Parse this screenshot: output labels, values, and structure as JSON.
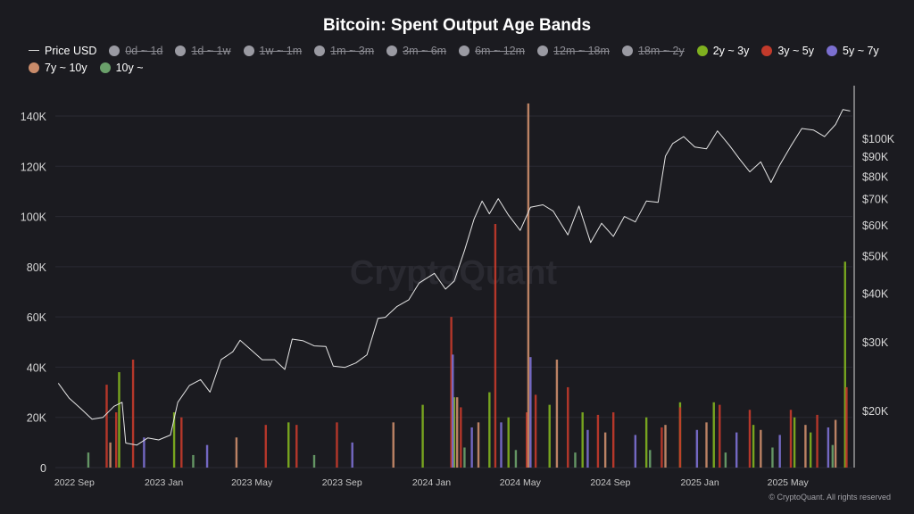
{
  "chart_data": {
    "type": "line",
    "title": "Bitcoin: Spent Output Age Bands",
    "watermark": "CryptoQuant",
    "copyright": "© CryptoQuant. All rights reserved",
    "legend": [
      {
        "name": "Price USD",
        "kind": "line",
        "color": "#d8d8d8",
        "enabled": true
      },
      {
        "name": "0d ~ 1d",
        "kind": "dot",
        "color": "#9a9aa2",
        "enabled": false
      },
      {
        "name": "1d ~ 1w",
        "kind": "dot",
        "color": "#9a9aa2",
        "enabled": false
      },
      {
        "name": "1w ~ 1m",
        "kind": "dot",
        "color": "#9a9aa2",
        "enabled": false
      },
      {
        "name": "1m ~ 3m",
        "kind": "dot",
        "color": "#9a9aa2",
        "enabled": false
      },
      {
        "name": "3m ~ 6m",
        "kind": "dot",
        "color": "#9a9aa2",
        "enabled": false
      },
      {
        "name": "6m ~ 12m",
        "kind": "dot",
        "color": "#9a9aa2",
        "enabled": false
      },
      {
        "name": "12m ~ 18m",
        "kind": "dot",
        "color": "#9a9aa2",
        "enabled": false
      },
      {
        "name": "18m ~ 2y",
        "kind": "dot",
        "color": "#9a9aa2",
        "enabled": false
      },
      {
        "name": "2y ~ 3y",
        "kind": "dot",
        "color": "#7fb01f",
        "enabled": true
      },
      {
        "name": "3y ~ 5y",
        "kind": "dot",
        "color": "#c23a2b",
        "enabled": true
      },
      {
        "name": "5y ~ 7y",
        "kind": "dot",
        "color": "#7b6fd0",
        "enabled": true
      },
      {
        "name": "7y ~ 10y",
        "kind": "dot",
        "color": "#c98b6a",
        "enabled": true
      },
      {
        "name": "10y ~",
        "kind": "dot",
        "color": "#6aa06a",
        "enabled": true
      }
    ],
    "x_ticks": [
      "2022 Sep",
      "2023 Jan",
      "2023 May",
      "2023 Sep",
      "2024 Jan",
      "2024 May",
      "2024 Sep",
      "2025 Jan",
      "2025 May"
    ],
    "y_left": {
      "ticks": [
        "0",
        "20K",
        "40K",
        "60K",
        "80K",
        "100K",
        "120K",
        "140K"
      ],
      "ylim": [
        0,
        140000
      ]
    },
    "y_right": {
      "scale": "log",
      "ticks": [
        "$20K",
        "$30K",
        "$40K",
        "$50K",
        "$60K",
        "$70K",
        "$80K",
        "$90K",
        "$100K"
      ],
      "tick_values": [
        20000,
        30000,
        40000,
        50000,
        60000,
        70000,
        80000,
        90000,
        100000
      ]
    },
    "price_series": {
      "name": "Price USD",
      "x": [
        "2022-08-10",
        "2022-08-25",
        "2022-09-10",
        "2022-09-25",
        "2022-10-10",
        "2022-10-25",
        "2022-11-05",
        "2022-11-10",
        "2022-11-25",
        "2022-12-10",
        "2022-12-25",
        "2023-01-10",
        "2023-01-20",
        "2023-02-05",
        "2023-02-20",
        "2023-03-05",
        "2023-03-20",
        "2023-04-05",
        "2023-04-15",
        "2023-05-01",
        "2023-05-15",
        "2023-06-01",
        "2023-06-15",
        "2023-06-25",
        "2023-07-10",
        "2023-07-25",
        "2023-08-10",
        "2023-08-20",
        "2023-09-05",
        "2023-09-20",
        "2023-10-05",
        "2023-10-20",
        "2023-10-30",
        "2023-11-15",
        "2023-12-01",
        "2023-12-15",
        "2024-01-05",
        "2024-01-20",
        "2024-02-01",
        "2024-02-15",
        "2024-02-28",
        "2024-03-10",
        "2024-03-20",
        "2024-04-01",
        "2024-04-15",
        "2024-05-01",
        "2024-05-15",
        "2024-06-01",
        "2024-06-15",
        "2024-07-05",
        "2024-07-20",
        "2024-08-05",
        "2024-08-20",
        "2024-09-05",
        "2024-09-20",
        "2024-10-05",
        "2024-10-20",
        "2024-11-05",
        "2024-11-15",
        "2024-11-25",
        "2024-12-10",
        "2024-12-25",
        "2025-01-10",
        "2025-01-25",
        "2025-02-10",
        "2025-02-25",
        "2025-03-10",
        "2025-03-25",
        "2025-04-08",
        "2025-04-20",
        "2025-05-05",
        "2025-05-20",
        "2025-06-05",
        "2025-06-20",
        "2025-07-05",
        "2025-07-15",
        "2025-07-25"
      ],
      "values": [
        23500,
        21500,
        20200,
        19000,
        19200,
        20500,
        21000,
        16500,
        16300,
        17000,
        16800,
        17300,
        21000,
        23200,
        24000,
        22300,
        27000,
        28300,
        30300,
        28500,
        27000,
        27000,
        25500,
        30500,
        30200,
        29300,
        29200,
        26000,
        25800,
        26500,
        27800,
        34500,
        34700,
        37000,
        38500,
        42500,
        45000,
        41000,
        43000,
        51500,
        62000,
        69000,
        64000,
        70000,
        63500,
        58000,
        66500,
        67500,
        65000,
        56500,
        67000,
        54000,
        60500,
        56000,
        63000,
        61000,
        69000,
        68500,
        90000,
        97000,
        101000,
        95000,
        94000,
        104500,
        96000,
        88000,
        82000,
        87000,
        77000,
        85500,
        95500,
        106000,
        105000,
        101000,
        108500,
        118500,
        117500
      ]
    },
    "spent_series": [
      {
        "name": "2y ~ 3y",
        "color": "#7fb01f",
        "x": [
          "2022-11-01",
          "2023-01-15",
          "2023-06-20",
          "2023-12-20",
          "2024-02-01",
          "2024-03-20",
          "2024-04-15",
          "2024-06-10",
          "2024-07-25",
          "2024-10-20",
          "2024-12-05",
          "2025-01-20",
          "2025-03-15",
          "2025-05-10",
          "2025-06-01",
          "2025-07-18"
        ],
        "values": [
          38000,
          22000,
          18000,
          25000,
          28000,
          30000,
          20000,
          25000,
          22000,
          20000,
          26000,
          26000,
          17000,
          20000,
          14000,
          82000
        ]
      },
      {
        "name": "3y ~ 5y",
        "color": "#c23a2b",
        "x": [
          "2022-10-15",
          "2022-10-28",
          "2022-11-20",
          "2023-01-25",
          "2023-05-20",
          "2023-07-01",
          "2023-08-25",
          "2024-01-28",
          "2024-02-10",
          "2024-03-28",
          "2024-05-10",
          "2024-05-22",
          "2024-07-05",
          "2024-08-15",
          "2024-09-05",
          "2024-11-10",
          "2024-12-05",
          "2025-01-28",
          "2025-03-10",
          "2025-05-05",
          "2025-06-10",
          "2025-07-20"
        ],
        "values": [
          33000,
          22000,
          43000,
          20000,
          17000,
          17000,
          18000,
          60000,
          24000,
          97000,
          22000,
          29000,
          32000,
          21000,
          22000,
          16000,
          24000,
          25000,
          23000,
          23000,
          21000,
          32000
        ]
      },
      {
        "name": "5y ~ 7y",
        "color": "#7b6fd0",
        "x": [
          "2022-12-05",
          "2023-03-01",
          "2023-09-15",
          "2024-01-30",
          "2024-02-25",
          "2024-04-05",
          "2024-05-15",
          "2024-08-01",
          "2024-10-05",
          "2024-12-28",
          "2025-02-20",
          "2025-04-20",
          "2025-06-25"
        ],
        "values": [
          12000,
          9000,
          10000,
          45000,
          16000,
          18000,
          44000,
          15000,
          13000,
          15000,
          14000,
          13000,
          16000
        ]
      },
      {
        "name": "7y ~ 10y",
        "color": "#c98b6a",
        "x": [
          "2022-10-20",
          "2023-04-10",
          "2023-11-10",
          "2024-02-05",
          "2024-03-05",
          "2024-05-12",
          "2024-06-20",
          "2024-08-25",
          "2024-11-15",
          "2025-01-10",
          "2025-03-25",
          "2025-05-25",
          "2025-07-05"
        ],
        "values": [
          10000,
          12000,
          18000,
          28000,
          18000,
          145000,
          43000,
          14000,
          17000,
          18000,
          15000,
          17000,
          19000
        ]
      },
      {
        "name": "10y ~",
        "color": "#6aa06a",
        "x": [
          "2022-09-20",
          "2023-02-10",
          "2023-07-25",
          "2024-02-15",
          "2024-04-25",
          "2024-07-15",
          "2024-10-25",
          "2025-02-05",
          "2025-04-10",
          "2025-07-01"
        ],
        "values": [
          6000,
          5000,
          5000,
          8000,
          7000,
          6000,
          7000,
          6000,
          8000,
          9000
        ]
      }
    ],
    "grid": true
  }
}
